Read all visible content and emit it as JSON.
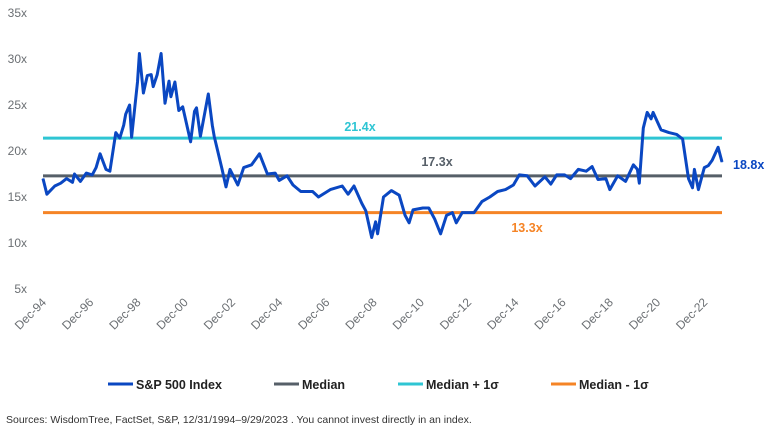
{
  "chart_data": {
    "type": "line",
    "title": "",
    "xlabel": "",
    "ylabel": "",
    "ylim": [
      5,
      35
    ],
    "y_ticks": [
      "5x",
      "10x",
      "15x",
      "20x",
      "25x",
      "30x",
      "35x"
    ],
    "x_ticks": [
      "Dec-94",
      "Dec-96",
      "Dec-98",
      "Dec-00",
      "Dec-02",
      "Dec-04",
      "Dec-06",
      "Dec-08",
      "Dec-10",
      "Dec-12",
      "Dec-14",
      "Dec-16",
      "Dec-18",
      "Dec-20",
      "Dec-22"
    ],
    "grid": false,
    "legend_position": "bottom",
    "series": [
      {
        "name": "S&P 500 Index",
        "color": "#0a47c2",
        "end_label": "18.8x",
        "x": [
          "1994-12",
          "1995-02",
          "1995-06",
          "1995-09",
          "1995-12",
          "1996-03",
          "1996-04",
          "1996-07",
          "1996-10",
          "1997-01",
          "1997-03",
          "1997-05",
          "1997-08",
          "1997-10",
          "1998-01",
          "1998-03",
          "1998-05",
          "1998-06",
          "1998-08",
          "1998-09",
          "1998-12",
          "1999-01",
          "1999-03",
          "1999-05",
          "1999-07",
          "1999-08",
          "1999-10",
          "1999-12",
          "2000-02",
          "2000-04",
          "2000-05",
          "2000-07",
          "2000-09",
          "2000-11",
          "2001-03",
          "2001-05",
          "2001-06",
          "2001-08",
          "2001-12",
          "2002-02",
          "2002-03",
          "2002-07",
          "2002-09",
          "2002-11",
          "2003-03",
          "2003-06",
          "2003-10",
          "2004-02",
          "2004-06",
          "2004-10",
          "2004-12",
          "2005-04",
          "2005-07",
          "2005-11",
          "2006-05",
          "2006-08",
          "2007-02",
          "2007-08",
          "2007-11",
          "2008-02",
          "2008-06",
          "2008-08",
          "2008-11",
          "2009-01",
          "2009-02",
          "2009-05",
          "2009-09",
          "2010-01",
          "2010-04",
          "2010-06",
          "2010-08",
          "2011-01",
          "2011-04",
          "2011-07",
          "2011-10",
          "2012-01",
          "2012-04",
          "2012-06",
          "2012-09",
          "2013-03",
          "2013-07",
          "2013-11",
          "2014-03",
          "2014-07",
          "2014-11",
          "2015-02",
          "2015-06",
          "2015-10",
          "2016-03",
          "2016-06",
          "2016-09",
          "2017-01",
          "2017-04",
          "2017-08",
          "2017-12",
          "2018-03",
          "2018-06",
          "2018-10",
          "2018-12",
          "2019-04",
          "2019-08",
          "2019-12",
          "2020-02",
          "2020-03",
          "2020-05",
          "2020-07",
          "2020-09",
          "2020-10",
          "2021-02",
          "2021-06",
          "2021-10",
          "2022-01",
          "2022-04",
          "2022-06",
          "2022-07",
          "2022-09",
          "2022-12",
          "2023-02",
          "2023-04",
          "2023-07",
          "2023-09"
        ],
        "values": [
          17.0,
          15.3,
          16.2,
          16.5,
          17.0,
          16.6,
          17.5,
          16.7,
          17.6,
          17.4,
          18.2,
          19.7,
          18.0,
          17.8,
          22.0,
          21.4,
          22.8,
          24.0,
          25.0,
          21.5,
          27.5,
          30.6,
          26.3,
          28.2,
          28.3,
          27.0,
          28.3,
          30.6,
          25.2,
          27.6,
          25.9,
          27.5,
          24.4,
          24.8,
          21.0,
          24.3,
          24.7,
          21.6,
          26.2,
          22.8,
          21.6,
          18.0,
          16.1,
          18.0,
          16.3,
          18.2,
          18.5,
          19.7,
          17.5,
          17.6,
          16.8,
          17.3,
          16.3,
          15.6,
          15.6,
          15.0,
          15.8,
          16.2,
          15.3,
          16.2,
          14.3,
          13.5,
          10.6,
          12.3,
          11.0,
          15.0,
          15.7,
          15.2,
          13.0,
          12.2,
          13.6,
          13.8,
          13.8,
          12.6,
          11.0,
          13.0,
          13.3,
          12.2,
          13.3,
          13.3,
          14.5,
          15.0,
          15.6,
          15.8,
          16.3,
          17.4,
          17.3,
          16.2,
          17.2,
          16.4,
          17.4,
          17.4,
          17.0,
          18.0,
          17.8,
          18.3,
          16.9,
          17.0,
          15.8,
          17.3,
          16.7,
          18.5,
          18.0,
          16.5,
          22.5,
          24.2,
          23.5,
          24.2,
          22.3,
          22.0,
          21.8,
          21.3,
          17.0,
          16.0,
          18.0,
          15.8,
          18.2,
          18.4,
          19.0,
          20.4,
          18.8
        ]
      },
      {
        "name": "Median",
        "color": "#565f68",
        "value": 17.3,
        "label": "17.3x"
      },
      {
        "name": "Median + 1σ",
        "color": "#2ec5d3",
        "value": 21.4,
        "label": "21.4x"
      },
      {
        "name": "Median - 1σ",
        "color": "#f58426",
        "value": 13.3,
        "label": "13.3x"
      }
    ]
  },
  "source": "Sources: WisdomTree, FactSet, S&P, 12/31/1994–9/29/2023 . You cannot invest directly in an index."
}
